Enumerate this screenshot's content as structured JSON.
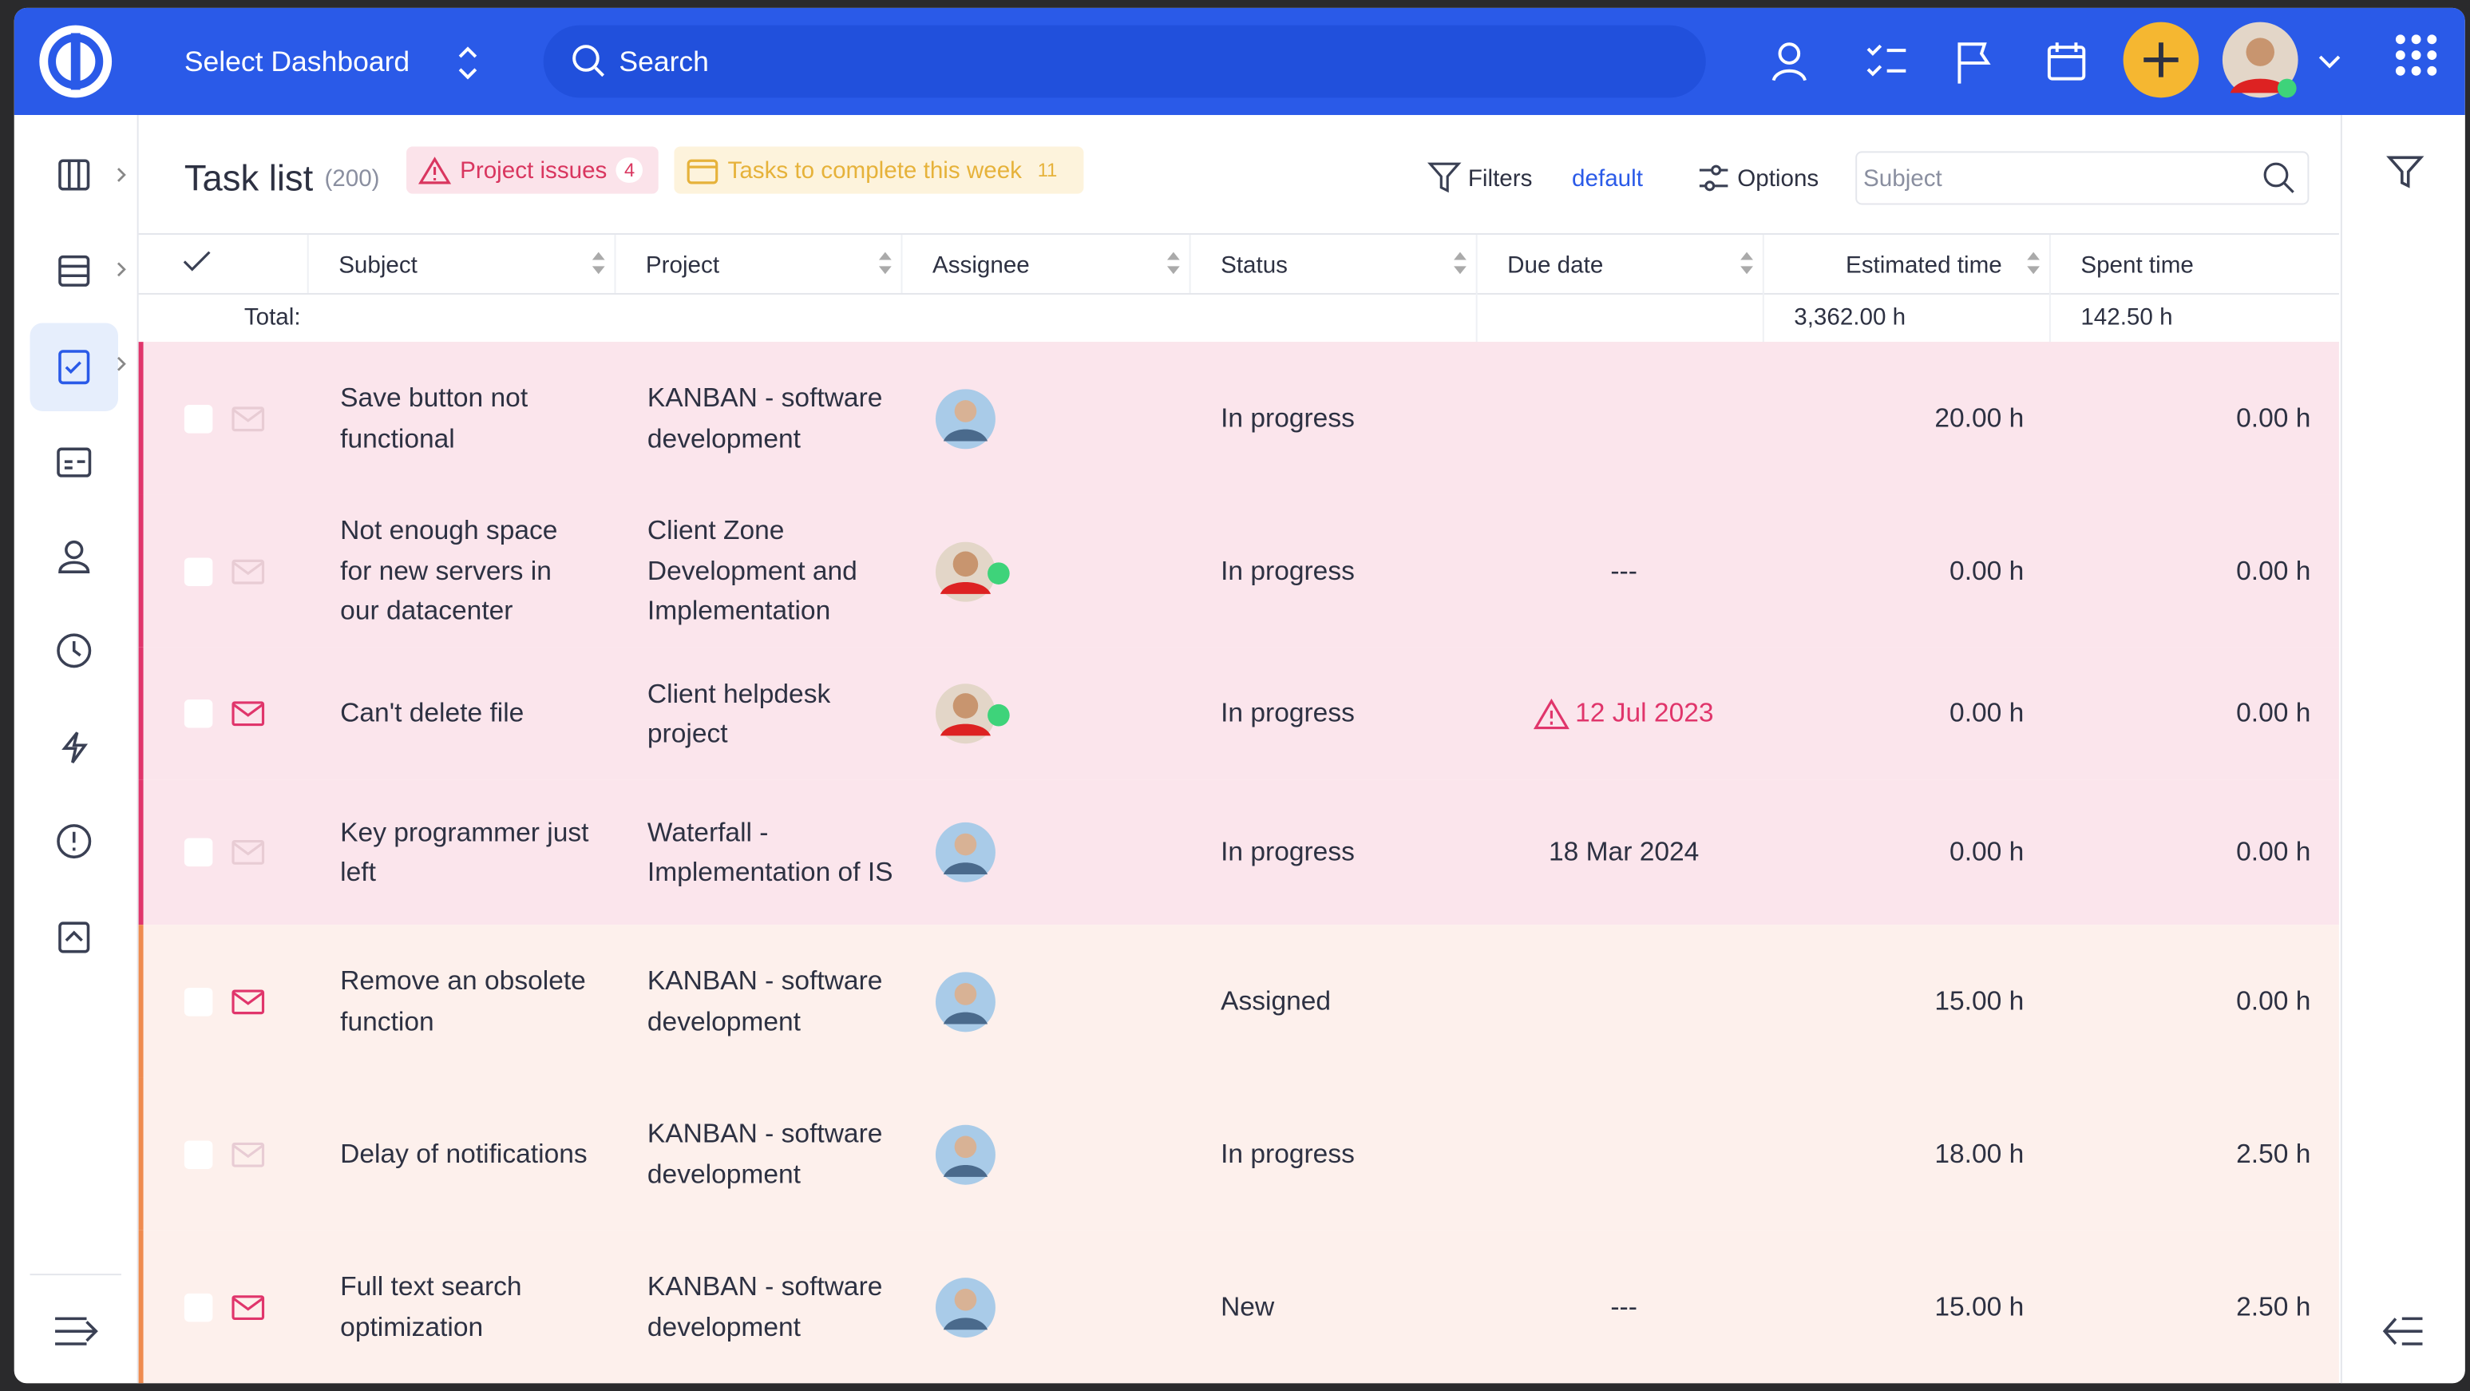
{
  "header": {
    "dashboard": "Select Dashboard",
    "search": "Search"
  },
  "toolbar": {
    "title": "Task list",
    "count": "(200)",
    "tabs": [
      {
        "label": "Project issues",
        "count": "4"
      },
      {
        "label": "Tasks to complete this week",
        "count": "11"
      }
    ],
    "filters": "Filters",
    "query": "default",
    "options": "Options",
    "subject_placeholder": "Subject"
  },
  "table": {
    "columns": [
      "Subject",
      "Project",
      "Assignee",
      "Status",
      "Due date",
      "Estimated time",
      "Spent time"
    ],
    "total": {
      "label": "Total:",
      "estimated": "3,362.00 h",
      "spent": "142.50 h"
    },
    "rows": [
      {
        "subject": "Save button not functional",
        "project": "KANBAN - software development",
        "status": "In progress",
        "due": null,
        "estimated": "20.00 h",
        "spent": "0.00 h"
      },
      {
        "subject": "Not enough space for new servers in our datacenter",
        "project": "Client Zone Development and Implementation",
        "status": "In progress",
        "due": "---",
        "estimated": "0.00 h",
        "spent": "0.00 h"
      },
      {
        "subject": "Can't delete file",
        "project": "Client helpdesk project",
        "status": "In progress",
        "due": "12 Jul 2023",
        "estimated": "0.00 h",
        "spent": "0.00 h"
      },
      {
        "subject": "Key programmer just left",
        "project": "Waterfall - Implementation of IS",
        "status": "In progress",
        "due": "18 Mar 2024",
        "estimated": "0.00 h",
        "spent": "0.00 h"
      },
      {
        "subject": "Remove an obsolete function",
        "project": "KANBAN - software development",
        "status": "Assigned",
        "due": null,
        "estimated": "15.00 h",
        "spent": "0.00 h"
      },
      {
        "subject": "Delay of notifications",
        "project": "KANBAN - software development",
        "status": "In progress",
        "due": null,
        "estimated": "18.00 h",
        "spent": "2.50 h"
      },
      {
        "subject": "Full text search optimization",
        "project": "KANBAN - software development",
        "status": "New",
        "due": "---",
        "estimated": "15.00 h",
        "spent": "2.50 h"
      }
    ]
  }
}
